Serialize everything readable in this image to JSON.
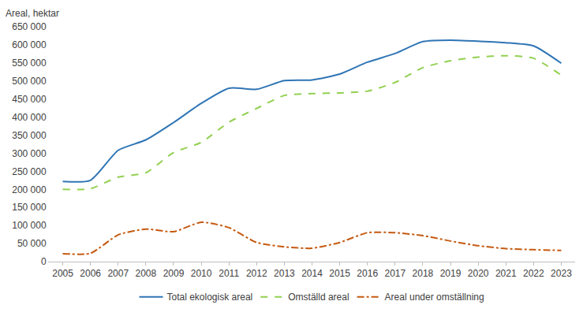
{
  "chart_data": {
    "type": "line",
    "y_label": "Areal, hektar",
    "categories": [
      "2005",
      "2006",
      "2007",
      "2008",
      "2009",
      "2010",
      "2011",
      "2012",
      "2013",
      "2014",
      "2015",
      "2016",
      "2017",
      "2018",
      "2019",
      "2020",
      "2021",
      "2022",
      "2023"
    ],
    "series": [
      {
        "name": "Total ekologisk areal",
        "color": "#2f75b5",
        "line_style": "solid",
        "values": [
          222000,
          225000,
          308000,
          337000,
          385000,
          438000,
          480000,
          477000,
          501000,
          503000,
          519000,
          552000,
          576000,
          609000,
          613000,
          610000,
          606000,
          597000,
          549000
        ]
      },
      {
        "name": "Omställd areal",
        "color": "#92d050",
        "line_style": "dash",
        "values": [
          200000,
          202000,
          234000,
          246000,
          302000,
          330000,
          386000,
          424000,
          460000,
          465000,
          467000,
          472000,
          496000,
          537000,
          556000,
          566000,
          570000,
          563000,
          516000
        ]
      },
      {
        "name": "Areal under omställning",
        "color": "#c55a11",
        "line_style": "dashdot",
        "values": [
          22000,
          23000,
          74000,
          90000,
          83000,
          109000,
          94000,
          53000,
          41000,
          37000,
          53000,
          80000,
          80000,
          72000,
          57000,
          44000,
          36000,
          33000,
          31000
        ]
      }
    ],
    "ylim": [
      0,
      650000
    ],
    "yticks": [
      0,
      {
        "value": 50000,
        "label": "50 000"
      },
      {
        "value": 100000,
        "label": "100 000"
      },
      {
        "value": 150000,
        "label": "150 000"
      },
      {
        "value": 200000,
        "label": "200 000"
      },
      {
        "value": 250000,
        "label": "250 000"
      },
      {
        "value": 300000,
        "label": "300 000"
      },
      {
        "value": 350000,
        "label": "350 000"
      },
      {
        "value": 400000,
        "label": "400 000"
      },
      {
        "value": 450000,
        "label": "450 000"
      },
      {
        "value": 500000,
        "label": "500 000"
      },
      {
        "value": 550000,
        "label": "550 000"
      },
      {
        "value": 600000,
        "label": "600 000"
      },
      {
        "value": 650000,
        "label": "650 000"
      }
    ],
    "grid": false,
    "legend": "bottom"
  }
}
